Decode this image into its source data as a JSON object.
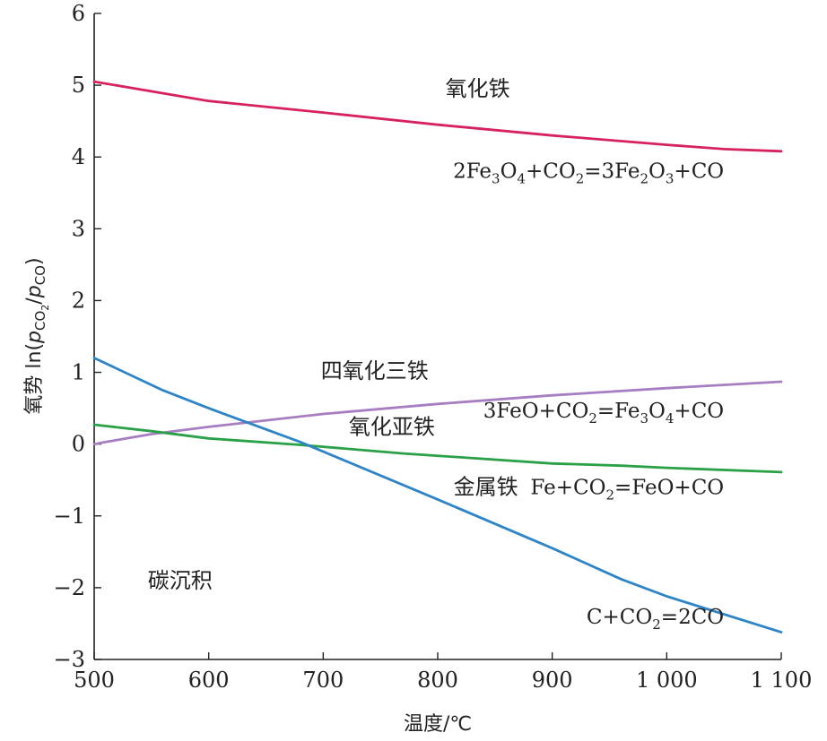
{
  "chart_data": {
    "type": "line",
    "title": "",
    "xlabel": "温度/℃",
    "ylabel": {
      "prefix": "氧势 ln(",
      "p1": "p",
      "p1_sub": "CO",
      "p1_sub2": "2",
      "slash": "/",
      "p2": "p",
      "p2_sub": "CO",
      "suffix": ")"
    },
    "xlim": [
      500,
      1100
    ],
    "ylim": [
      -3,
      6
    ],
    "x_ticks": [
      500,
      600,
      700,
      800,
      900,
      1000,
      1100
    ],
    "x_tick_labels": [
      "500",
      "600",
      "700",
      "800",
      "900",
      "1 000",
      "1 100"
    ],
    "y_ticks": [
      -3,
      -2,
      -1,
      0,
      1,
      2,
      3,
      4,
      5,
      6
    ],
    "y_tick_labels": [
      "−3",
      "−2",
      "−1",
      "0",
      "1",
      "2",
      "3",
      "4",
      "5",
      "6"
    ],
    "grid": false,
    "series": [
      {
        "color": "#d6235e",
        "x": [
          500,
          600,
          700,
          800,
          900,
          1000,
          1050,
          1100
        ],
        "y": [
          5.05,
          4.78,
          4.62,
          4.45,
          4.3,
          4.17,
          4.11,
          4.08
        ]
      },
      {
        "color": "#a77ec2",
        "x": [
          500,
          510,
          550,
          600,
          700,
          800,
          900,
          1000,
          1100
        ],
        "y": [
          0.0,
          0.03,
          0.14,
          0.24,
          0.42,
          0.56,
          0.68,
          0.78,
          0.87
        ]
      },
      {
        "color": "#2aa147",
        "x": [
          500,
          550,
          600,
          680,
          770,
          900,
          960,
          1000,
          1100
        ],
        "y": [
          0.27,
          0.18,
          0.08,
          -0.01,
          -0.13,
          -0.27,
          -0.3,
          -0.33,
          -0.39
        ]
      },
      {
        "color": "#2d84c6",
        "x": [
          500,
          560,
          600,
          680,
          800,
          900,
          960,
          1000,
          1100
        ],
        "y": [
          1.2,
          0.75,
          0.5,
          0.03,
          -0.77,
          -1.45,
          -1.88,
          -2.12,
          -2.62
        ]
      }
    ],
    "annotations": [
      {
        "text": "氧化铁",
        "x": 835,
        "y": 4.85,
        "kind": "region"
      },
      {
        "text": "2Fe3O4+CO2=3Fe2O3+CO",
        "x": 1050,
        "y": 3.71,
        "kind": "equation",
        "parts": [
          "2Fe",
          "3",
          "O",
          "4",
          "+CO",
          "2",
          "=3Fe",
          "2",
          "O",
          "3",
          "+CO"
        ]
      },
      {
        "text": "四氧化三铁",
        "x": 745,
        "y": 0.92,
        "kind": "region"
      },
      {
        "text": "3FeO+CO2=Fe3O4+CO",
        "x": 1050,
        "y": 0.37,
        "kind": "equation",
        "parts": [
          "3FeO+CO",
          "2",
          "=Fe",
          "3",
          "O",
          "4",
          "+CO"
        ]
      },
      {
        "text": "氧化亚铁",
        "x": 760,
        "y": 0.14,
        "kind": "region"
      },
      {
        "text": "金属铁",
        "x": 842,
        "y": -0.7,
        "kind": "region"
      },
      {
        "text": "Fe+CO2=FeO+CO",
        "x": 1050,
        "y": -0.7,
        "kind": "equation",
        "parts": [
          "Fe+CO",
          "2",
          "=FeO+CO"
        ]
      },
      {
        "text": "碳沉积",
        "x": 575,
        "y": -2.0,
        "kind": "region"
      },
      {
        "text": "C+CO2=2CO",
        "x": 1050,
        "y": -2.5,
        "kind": "equation",
        "parts": [
          "C+CO",
          "2",
          "=2CO"
        ]
      }
    ]
  }
}
